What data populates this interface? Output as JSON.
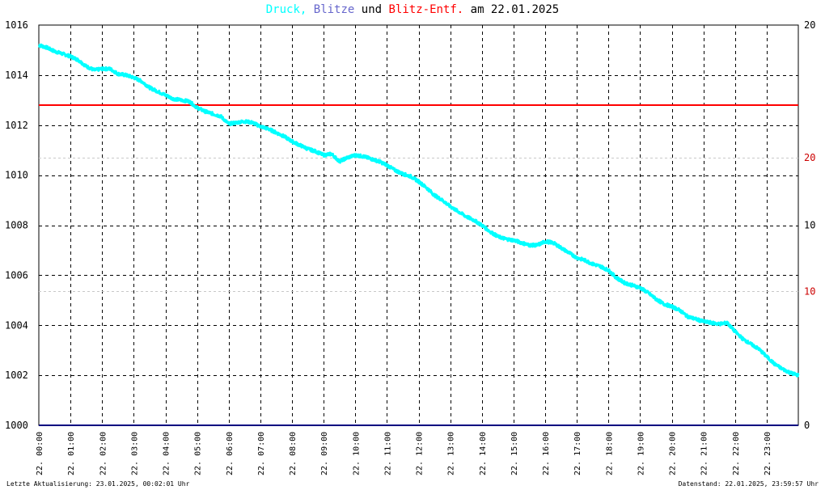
{
  "title": {
    "druck": "Druck,",
    "blitze": "Blitze",
    "und": " und ",
    "entf": "Blitz-Entf.",
    "am": " am 22.01.2025"
  },
  "footer": {
    "left": "Letzte Aktualisierung: 23.01.2025, 00:02:01 Uhr",
    "right": "Datenstand: 22.01.2025, 23:59:57 Uhr"
  },
  "chart_data": {
    "type": "line",
    "title": "Druck, Blitze und Blitz-Entf. am 22.01.2025",
    "x_ticks": [
      "22. 00:00",
      "22. 01:00",
      "22. 02:00",
      "22. 03:00",
      "22. 04:00",
      "22. 05:00",
      "22. 06:00",
      "22. 07:00",
      "22. 08:00",
      "22. 09:00",
      "22. 10:00",
      "22. 11:00",
      "22. 12:00",
      "22. 13:00",
      "22. 14:00",
      "22. 15:00",
      "22. 16:00",
      "22. 17:00",
      "22. 18:00",
      "22. 19:00",
      "22. 20:00",
      "22. 21:00",
      "22. 22:00",
      "22. 23:00"
    ],
    "y_left": {
      "range": [
        1000,
        1016
      ],
      "ticks": [
        "1000",
        "1002",
        "1004",
        "1006",
        "1008",
        "1010",
        "1012",
        "1014",
        "1016"
      ]
    },
    "y_right_top": {
      "ticks": [
        "20"
      ],
      "color": "#000000"
    },
    "y_right_red": {
      "ticks": [
        "20",
        "10"
      ],
      "color": "#cc0000"
    },
    "y_right_black": {
      "ticks": [
        "10",
        "0"
      ],
      "color": "#000000"
    },
    "grid": true,
    "colors": {
      "druck": "#00ffff",
      "blitze": "#6666cc",
      "entf": "#ff0000",
      "baseline": "#000080"
    },
    "series": [
      {
        "name": "Druck",
        "x_hours": [
          0,
          0.25,
          0.5,
          0.75,
          1,
          1.25,
          1.5,
          1.75,
          2,
          2.25,
          2.5,
          2.75,
          3,
          3.25,
          3.5,
          3.75,
          4,
          4.25,
          4.5,
          4.75,
          5,
          5.25,
          5.5,
          5.75,
          6,
          6.25,
          6.5,
          6.75,
          7,
          7.25,
          7.5,
          7.75,
          8,
          8.25,
          8.5,
          8.75,
          9,
          9.25,
          9.5,
          9.75,
          10,
          10.25,
          10.5,
          10.75,
          11,
          11.25,
          11.5,
          11.75,
          12,
          12.25,
          12.5,
          12.75,
          13,
          13.25,
          13.5,
          13.75,
          14,
          14.25,
          14.5,
          14.75,
          15,
          15.25,
          15.5,
          15.75,
          16,
          16.25,
          16.5,
          16.75,
          17,
          17.25,
          17.5,
          17.75,
          18,
          18.25,
          18.5,
          18.75,
          19,
          19.25,
          19.5,
          19.75,
          20,
          20.25,
          20.5,
          20.75,
          21,
          21.25,
          21.5,
          21.75,
          22,
          22.25,
          22.5,
          22.75,
          23,
          23.25,
          23.5,
          23.75,
          24
        ],
        "values": [
          1015.2,
          1015.1,
          1014.95,
          1014.85,
          1014.75,
          1014.6,
          1014.35,
          1014.2,
          1014.25,
          1014.25,
          1014.05,
          1014.0,
          1013.9,
          1013.75,
          1013.5,
          1013.35,
          1013.2,
          1013.05,
          1013.0,
          1012.95,
          1012.7,
          1012.55,
          1012.45,
          1012.35,
          1012.05,
          1012.1,
          1012.15,
          1012.1,
          1011.95,
          1011.85,
          1011.7,
          1011.55,
          1011.35,
          1011.2,
          1011.05,
          1010.95,
          1010.8,
          1010.85,
          1010.55,
          1010.7,
          1010.8,
          1010.75,
          1010.65,
          1010.55,
          1010.4,
          1010.2,
          1010.05,
          1009.95,
          1009.75,
          1009.5,
          1009.2,
          1009.0,
          1008.75,
          1008.55,
          1008.35,
          1008.2,
          1008.0,
          1007.75,
          1007.55,
          1007.45,
          1007.4,
          1007.3,
          1007.2,
          1007.2,
          1007.35,
          1007.3,
          1007.1,
          1006.9,
          1006.7,
          1006.6,
          1006.45,
          1006.35,
          1006.2,
          1005.9,
          1005.7,
          1005.6,
          1005.5,
          1005.3,
          1005.05,
          1004.85,
          1004.75,
          1004.6,
          1004.35,
          1004.25,
          1004.15,
          1004.1,
          1004.05,
          1004.1,
          1003.75,
          1003.45,
          1003.25,
          1003.05,
          1002.75,
          1002.45,
          1002.25,
          1002.1,
          1002.0
        ]
      },
      {
        "name": "Blitz-Entf.",
        "constant": 1012.8
      },
      {
        "name": "Blitze",
        "constant": 1000
      }
    ]
  }
}
